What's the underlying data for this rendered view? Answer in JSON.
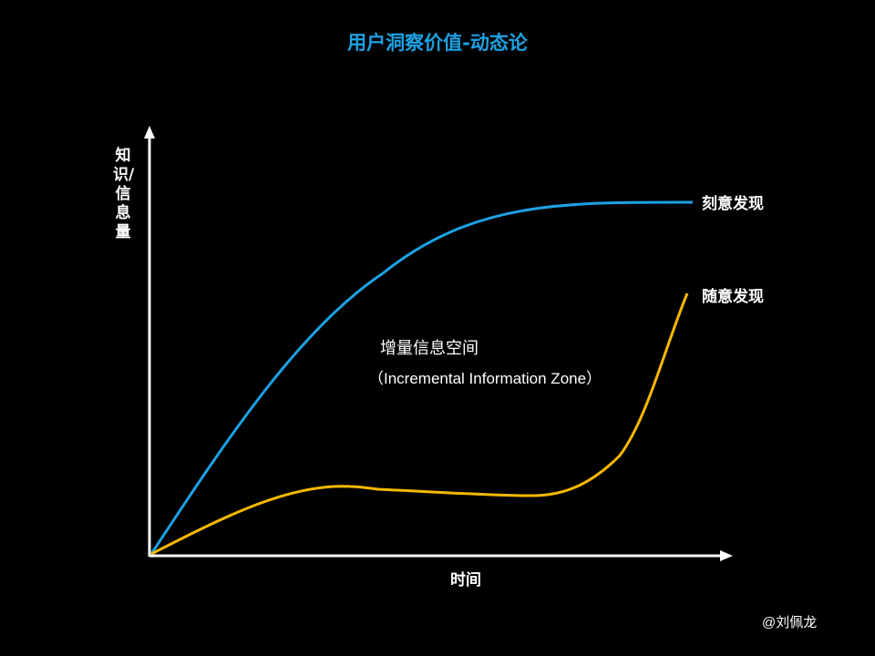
{
  "title": "用户洞察价值-动态论",
  "axes": {
    "y_label": "知识/信息量",
    "x_label": "时间"
  },
  "curves": {
    "deliberate": {
      "label": "刻意发现",
      "color": "#1da1e2"
    },
    "random": {
      "label": "随意发现",
      "color": "#f5b800"
    }
  },
  "zone": {
    "label": "增量信息空间",
    "sublabel": "（Incremental Information Zone）"
  },
  "credit": "@刘佩龙",
  "colors": {
    "background": "#000000",
    "axis": "#ffffff",
    "title": "#1da1e2"
  }
}
